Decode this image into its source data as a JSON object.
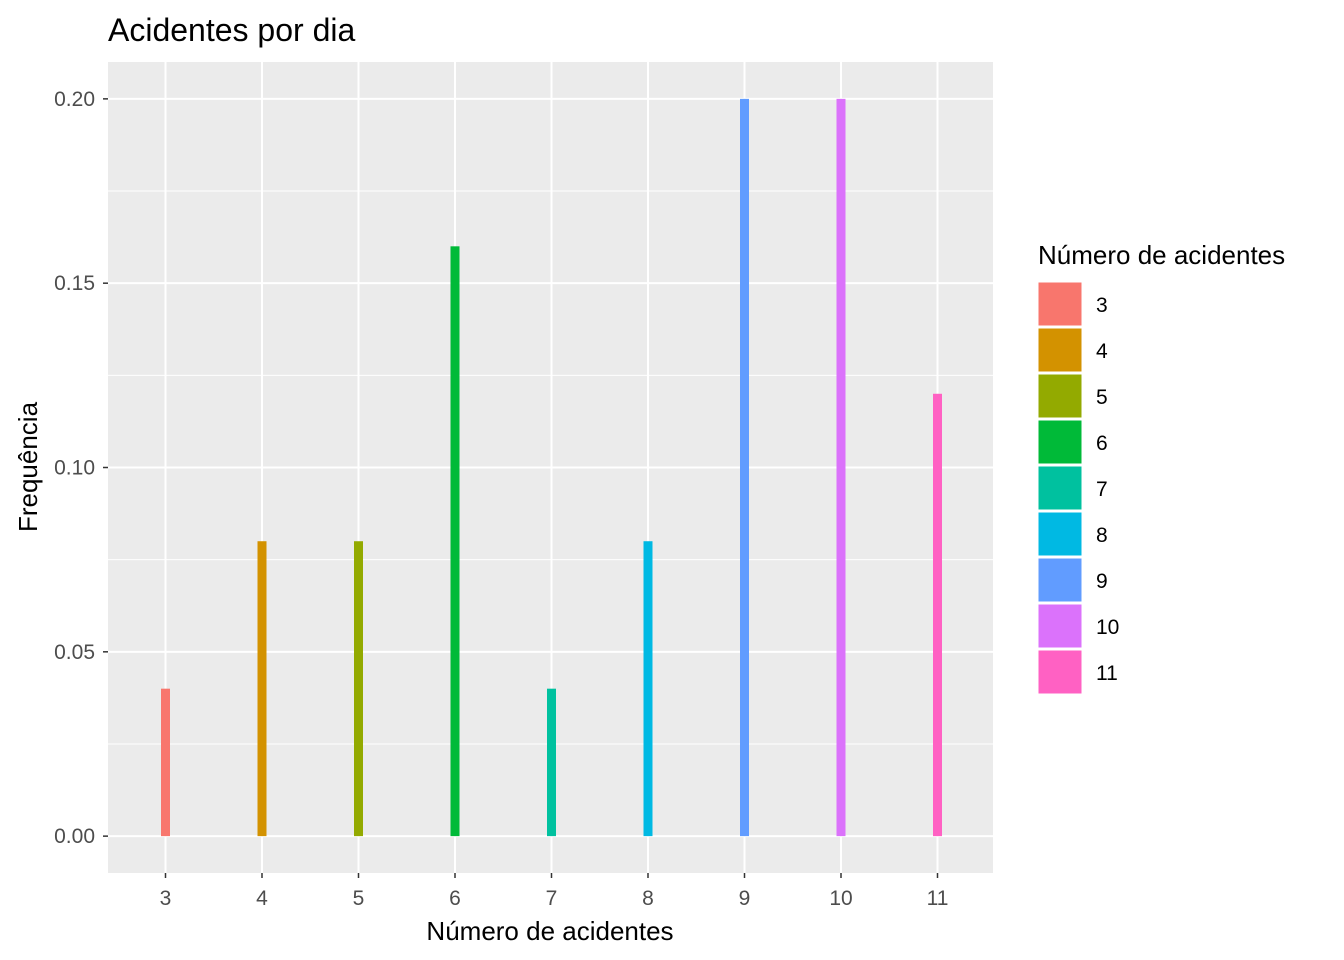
{
  "chart_data": {
    "type": "bar",
    "title": "Acidentes por dia",
    "xlabel": "Número de acidentes",
    "ylabel": "Frequência",
    "categories": [
      "3",
      "4",
      "5",
      "6",
      "7",
      "8",
      "9",
      "10",
      "11"
    ],
    "values": [
      0.04,
      0.08,
      0.08,
      0.16,
      0.04,
      0.08,
      0.2,
      0.2,
      0.12
    ],
    "colors": [
      "#F8766D",
      "#D39200",
      "#93AA00",
      "#00BA38",
      "#00C19F",
      "#00B9E3",
      "#619CFF",
      "#DB72FB",
      "#FF61C3"
    ],
    "yticks": [
      "0.00",
      "0.05",
      "0.10",
      "0.15",
      "0.20"
    ],
    "ylim": [
      -0.01,
      0.21
    ],
    "grid": true,
    "panel_background": "#EBEBEB",
    "legend": {
      "title": "Número de acidentes",
      "position": "right",
      "labels": [
        "3",
        "4",
        "5",
        "6",
        "7",
        "8",
        "9",
        "10",
        "11"
      ]
    }
  }
}
